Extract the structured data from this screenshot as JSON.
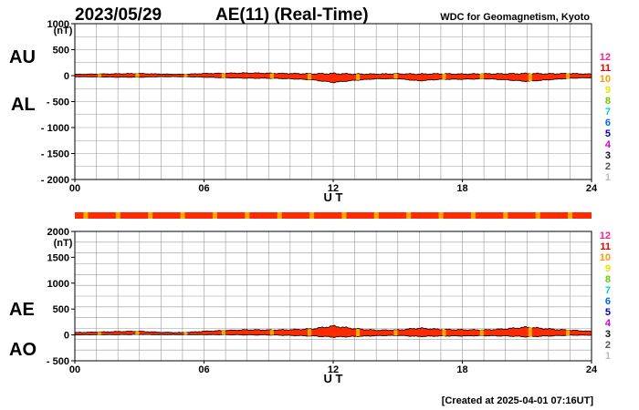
{
  "header": {
    "date": "2023/05/29",
    "title": "AE(11) (Real-Time)",
    "source": "WDC for Geomagnetism, Kyoto"
  },
  "footer": {
    "created": "[Created at 2025-04-01 07:16UT]"
  },
  "station_legend": {
    "numbers": [
      "12",
      "11",
      "10",
      "9",
      "8",
      "7",
      "6",
      "5",
      "4",
      "3",
      "2",
      "1"
    ],
    "colors": [
      "#ff1f8f",
      "#e60000",
      "#ff9900",
      "#e6e600",
      "#66cc00",
      "#00cccc",
      "#0066ff",
      "#0000bb",
      "#cc00cc",
      "#111111",
      "#555555",
      "#bbbbbb"
    ]
  },
  "colors": {
    "fill_red": "#ff2a00",
    "fill_orange": "#ffaa00",
    "outline": "#000000",
    "grid": "#9a9a9a"
  },
  "chart_data": [
    {
      "type": "area",
      "panel": "AU/AL",
      "series_labels": [
        "AU",
        "AL"
      ],
      "yunit": "(nT)",
      "xlabel": "U T",
      "ylim": [
        -2000,
        1000
      ],
      "yticks": [
        1000,
        500,
        0,
        -500,
        -1000,
        -1500,
        -2000
      ],
      "ytick_labels": [
        "1000",
        "500",
        "0",
        "- 500",
        "- 1000",
        "- 1500",
        "- 2000"
      ],
      "xlim": [
        0,
        24
      ],
      "xticks": [
        0,
        6,
        12,
        18,
        24
      ],
      "xtick_labels": [
        "00",
        "06",
        "12",
        "18",
        "24"
      ],
      "grid": true,
      "x_hours": [
        0,
        1,
        2,
        3,
        4,
        5,
        6,
        7,
        8,
        9,
        10,
        11,
        12,
        13,
        14,
        15,
        16,
        17,
        18,
        19,
        20,
        21,
        22,
        23,
        24
      ],
      "upper_nT": [
        25,
        30,
        35,
        40,
        30,
        25,
        40,
        45,
        50,
        45,
        40,
        35,
        40,
        30,
        30,
        35,
        30,
        35,
        30,
        35,
        35,
        40,
        35,
        40,
        30
      ],
      "lower_nT": [
        -20,
        -25,
        -30,
        -30,
        -20,
        -20,
        -30,
        -40,
        -50,
        -50,
        -60,
        -80,
        -130,
        -90,
        -60,
        -60,
        -100,
        -70,
        -70,
        -60,
        -80,
        -110,
        -80,
        -50,
        -40
      ]
    },
    {
      "type": "area",
      "panel": "AE/AO",
      "series_labels": [
        "AE",
        "AO"
      ],
      "yunit": "(nT)",
      "xlabel": "U T",
      "ylim": [
        -500,
        2000
      ],
      "yticks": [
        2000,
        1500,
        1000,
        500,
        0,
        -500
      ],
      "ytick_labels": [
        "2000",
        "1500",
        "1000",
        "500",
        "0",
        "- 500"
      ],
      "xlim": [
        0,
        24
      ],
      "xticks": [
        0,
        6,
        12,
        18,
        24
      ],
      "xtick_labels": [
        "00",
        "06",
        "12",
        "18",
        "24"
      ],
      "grid": true,
      "x_hours": [
        0,
        1,
        2,
        3,
        4,
        5,
        6,
        7,
        8,
        9,
        10,
        11,
        12,
        13,
        14,
        15,
        16,
        17,
        18,
        19,
        20,
        21,
        22,
        23,
        24
      ],
      "upper_nT": [
        45,
        55,
        65,
        70,
        50,
        45,
        70,
        85,
        100,
        95,
        100,
        115,
        170,
        120,
        90,
        95,
        130,
        105,
        100,
        95,
        115,
        150,
        115,
        90,
        70
      ],
      "lower_nT": [
        0,
        5,
        5,
        10,
        5,
        5,
        5,
        5,
        0,
        0,
        -10,
        -20,
        -40,
        -30,
        -15,
        -10,
        -30,
        -20,
        -20,
        -15,
        -20,
        -35,
        -20,
        -5,
        -5
      ]
    }
  ]
}
